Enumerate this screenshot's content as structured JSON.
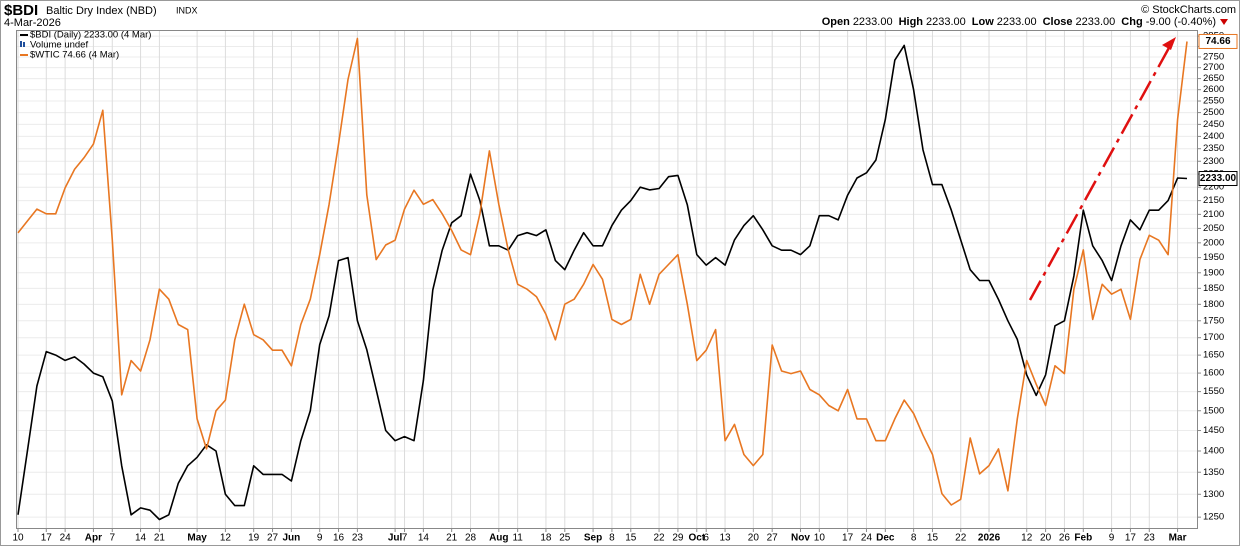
{
  "header": {
    "symbol": "$BDI",
    "name": "Baltic Dry Index (NBD)",
    "exchange": "INDX",
    "copyright": "© StockCharts.com",
    "date": "4-Mar-2026",
    "quote": [
      {
        "label": "Open",
        "value": "2233.00"
      },
      {
        "label": "High",
        "value": "2233.00"
      },
      {
        "label": "Low",
        "value": "2233.00"
      },
      {
        "label": "Close",
        "value": "2233.00"
      },
      {
        "label": "Chg",
        "value": "-9.00 (-0.40%)"
      }
    ]
  },
  "chart_data": {
    "type": "line",
    "volume_label": "Volume undef",
    "categories": [
      "10",
      null,
      null,
      "17",
      null,
      "24",
      null,
      null,
      "Apr",
      null,
      "7",
      null,
      null,
      "14",
      null,
      "21",
      null,
      null,
      null,
      "May",
      null,
      null,
      "12",
      null,
      null,
      "19",
      null,
      "27",
      null,
      "Jun",
      null,
      null,
      "9",
      null,
      "16",
      null,
      "23",
      null,
      null,
      null,
      "Jul",
      "7",
      null,
      "14",
      null,
      null,
      "21",
      null,
      "28",
      null,
      null,
      "Aug",
      null,
      "11",
      null,
      null,
      "18",
      null,
      "25",
      null,
      null,
      "Sep",
      null,
      "8",
      null,
      "15",
      null,
      null,
      "22",
      null,
      "29",
      null,
      "Oct",
      "6",
      null,
      "13",
      null,
      null,
      "20",
      null,
      "27",
      null,
      null,
      "Nov",
      null,
      "10",
      null,
      null,
      "17",
      null,
      "24",
      null,
      "Dec",
      null,
      null,
      "8",
      null,
      "15",
      null,
      null,
      "22",
      null,
      null,
      "2026",
      null,
      null,
      null,
      "12",
      null,
      "20",
      null,
      "26",
      null,
      "Feb",
      null,
      null,
      "9",
      null,
      "17",
      null,
      "23",
      null,
      null,
      "Mar",
      null
    ],
    "series": [
      {
        "name": "$BDI (Daily) 2233.00 (4 Mar)",
        "color": "#000000",
        "last_value_label": "2233.00",
        "values": [
          1255,
          1400,
          1565,
          1660,
          1650,
          1635,
          1645,
          1625,
          1600,
          1590,
          1525,
          1365,
          1255,
          1270,
          1265,
          1245,
          1255,
          1325,
          1365,
          1385,
          1415,
          1400,
          1300,
          1275,
          1275,
          1365,
          1345,
          1345,
          1345,
          1330,
          1425,
          1500,
          1680,
          1765,
          1940,
          1950,
          1750,
          1665,
          1555,
          1450,
          1425,
          1435,
          1425,
          1580,
          1845,
          1975,
          2070,
          2095,
          2250,
          2150,
          1990,
          1990,
          1975,
          2025,
          2035,
          2025,
          2045,
          1940,
          1910,
          1975,
          2035,
          1990,
          1990,
          2060,
          2115,
          2150,
          2200,
          2190,
          2195,
          2240,
          2245,
          2135,
          1960,
          1925,
          1950,
          1925,
          2010,
          2060,
          2095,
          2045,
          1990,
          1975,
          1975,
          1960,
          1990,
          2095,
          2095,
          2080,
          2170,
          2235,
          2255,
          2305,
          2470,
          2735,
          2805,
          2600,
          2345,
          2210,
          2210,
          2115,
          2010,
          1910,
          1875,
          1875,
          1815,
          1750,
          1695,
          1595,
          1540,
          1595,
          1735,
          1750,
          1890,
          2115,
          1990,
          1940,
          1875,
          1990,
          2080,
          2045,
          2115,
          2115,
          2150,
          2235,
          2233
        ]
      },
      {
        "name": "$WTIC 74.66 (4 Mar)",
        "color": "#e87722",
        "axis": "y2",
        "last_value_label": "74.66",
        "values": [
          66.2,
          66.7,
          67.2,
          67.0,
          67.0,
          68.1,
          68.9,
          69.4,
          70.0,
          71.5,
          65.9,
          59.8,
          61.1,
          60.7,
          61.9,
          63.9,
          63.5,
          62.5,
          62.3,
          58.9,
          57.8,
          59.2,
          59.6,
          61.9,
          63.3,
          62.1,
          61.9,
          61.5,
          61.5,
          60.9,
          62.5,
          63.5,
          65.3,
          67.4,
          70.0,
          72.9,
          74.8,
          67.8,
          65.1,
          65.7,
          65.9,
          67.2,
          68.0,
          67.4,
          67.6,
          67.0,
          66.3,
          65.5,
          65.3,
          67.0,
          69.7,
          67.4,
          65.5,
          64.1,
          63.9,
          63.6,
          62.9,
          61.9,
          63.3,
          63.5,
          64.1,
          64.9,
          64.3,
          62.7,
          62.5,
          62.7,
          64.5,
          63.3,
          64.5,
          64.9,
          65.3,
          63.3,
          61.1,
          61.5,
          62.3,
          58.1,
          58.7,
          57.6,
          57.2,
          57.6,
          61.7,
          60.7,
          60.6,
          60.7,
          60.0,
          59.8,
          59.4,
          59.2,
          60.0,
          58.9,
          58.9,
          58.1,
          58.1,
          58.9,
          59.6,
          59.1,
          58.3,
          57.6,
          56.2,
          55.8,
          56.0,
          58.2,
          56.9,
          57.2,
          57.8,
          56.3,
          58.9,
          61.1,
          60.2,
          59.4,
          60.9,
          60.6,
          63.9,
          65.5,
          62.7,
          64.1,
          63.7,
          63.9,
          62.7,
          65.1,
          66.1,
          65.9,
          65.3,
          71.1,
          74.66
        ]
      }
    ],
    "yscale": "log",
    "y2scale": "log",
    "ylim": [
      1227,
      2880
    ],
    "y2lim": [
      55.0,
      75.2
    ],
    "yticks": [
      1250,
      1300,
      1350,
      1400,
      1450,
      1500,
      1550,
      1600,
      1650,
      1700,
      1750,
      1800,
      1850,
      1900,
      1950,
      2000,
      2050,
      2100,
      2150,
      2200,
      2250,
      2300,
      2350,
      2400,
      2450,
      2500,
      2550,
      2600,
      2650,
      2700,
      2750,
      2800,
      2850
    ],
    "grid": true
  }
}
